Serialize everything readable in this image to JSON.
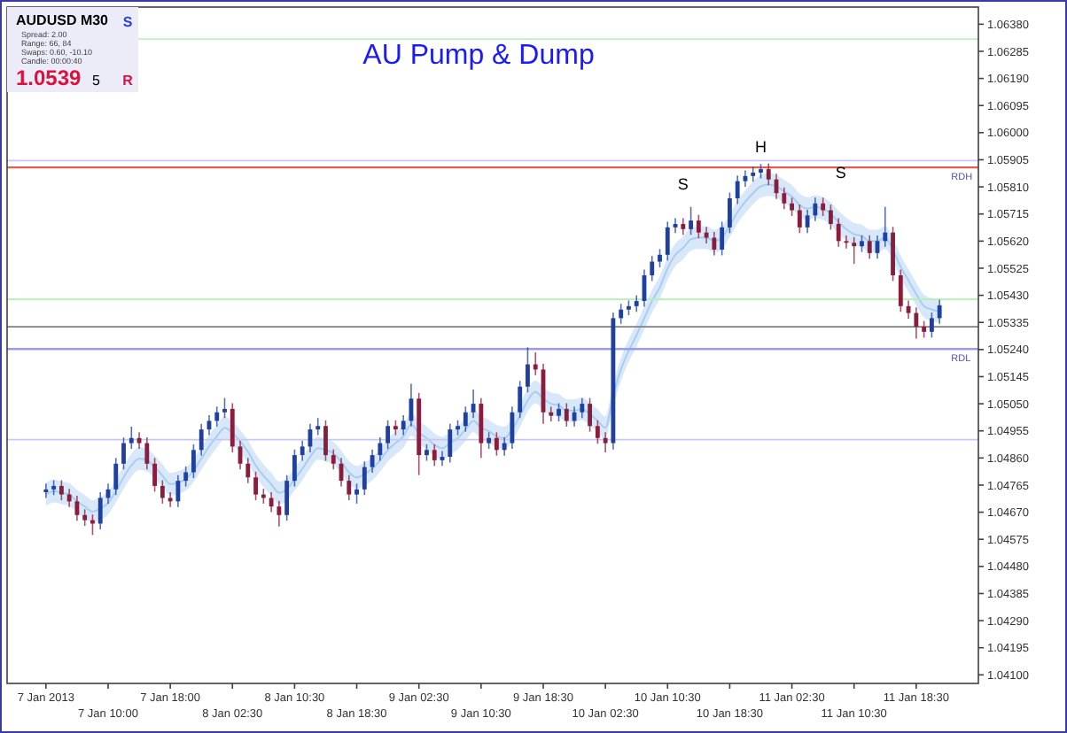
{
  "chart_data": {
    "type": "candlestick",
    "title": "AU Pump & Dump",
    "categories": [
      "7 Jan 2013",
      null,
      null,
      null,
      null,
      null,
      null,
      null,
      "7 Jan 10:00",
      null,
      null,
      null,
      null,
      null,
      null,
      null,
      "7 Jan 18:00",
      null,
      null,
      null,
      null,
      null,
      null,
      null,
      "8 Jan 02:30",
      null,
      null,
      null,
      null,
      null,
      null,
      null,
      "8 Jan 10:30",
      null,
      null,
      null,
      null,
      null,
      null,
      null,
      "8 Jan 18:30",
      null,
      null,
      null,
      null,
      null,
      null,
      null,
      "9 Jan 02:30",
      null,
      null,
      null,
      null,
      null,
      null,
      null,
      "9 Jan 10:30",
      null,
      null,
      null,
      null,
      null,
      null,
      null,
      "9 Jan 18:30",
      null,
      null,
      null,
      null,
      null,
      null,
      null,
      "10 Jan 02:30",
      null,
      null,
      null,
      null,
      null,
      null,
      null,
      "10 Jan 10:30",
      null,
      null,
      null,
      null,
      null,
      null,
      null,
      "10 Jan 18:30",
      null,
      null,
      null,
      null,
      null,
      null,
      null,
      "11 Jan 02:30",
      null,
      null,
      null,
      null,
      null,
      null,
      null,
      "11 Jan 10:30",
      null,
      null,
      null,
      null,
      null,
      null,
      null,
      "11 Jan 18:30",
      null,
      null,
      null
    ],
    "ohlc": [
      [
        1.0474,
        1.0477,
        1.0472,
        1.0475
      ],
      [
        1.0475,
        1.04782,
        1.0473,
        1.04762
      ],
      [
        1.04762,
        1.04782,
        1.04712,
        1.04732
      ],
      [
        1.04732,
        1.04752,
        1.04688,
        1.04708
      ],
      [
        1.04708,
        1.04728,
        1.0464,
        1.0466
      ],
      [
        1.0466,
        1.0468,
        1.04622,
        1.04642
      ],
      [
        1.04642,
        1.04662,
        1.0459,
        1.0463
      ],
      [
        1.0463,
        1.0474,
        1.0461,
        1.0472
      ],
      [
        1.0472,
        1.0477,
        1.047,
        1.0475
      ],
      [
        1.0475,
        1.0486,
        1.0473,
        1.0484
      ],
      [
        1.0484,
        1.04932,
        1.0482,
        1.04912
      ],
      [
        1.04912,
        1.0497,
        1.04892,
        1.0493
      ],
      [
        1.0493,
        1.0495,
        1.04892,
        1.04912
      ],
      [
        1.04912,
        1.04932,
        1.0482,
        1.0484
      ],
      [
        1.0484,
        1.0486,
        1.04742,
        1.04762
      ],
      [
        1.04762,
        1.04782,
        1.047,
        1.0472
      ],
      [
        1.0472,
        1.0474,
        1.04688,
        1.04708
      ],
      [
        1.04708,
        1.048,
        1.04688,
        1.0478
      ],
      [
        1.0478,
        1.0483,
        1.0476,
        1.0481
      ],
      [
        1.0481,
        1.04908,
        1.0479,
        1.04888
      ],
      [
        1.04888,
        1.0498,
        1.04868,
        1.0496
      ],
      [
        1.0496,
        1.0501,
        1.0494,
        1.0499
      ],
      [
        1.0499,
        1.0504,
        1.0497,
        1.0502
      ],
      [
        1.0502,
        1.0507,
        1.05,
        1.05032
      ],
      [
        1.05032,
        1.05052,
        1.0488,
        1.049
      ],
      [
        1.049,
        1.0492,
        1.0482,
        1.0484
      ],
      [
        1.0484,
        1.0486,
        1.04772,
        1.04792
      ],
      [
        1.04792,
        1.04812,
        1.04712,
        1.04732
      ],
      [
        1.04732,
        1.04752,
        1.047,
        1.0472
      ],
      [
        1.0472,
        1.0474,
        1.0467,
        1.0469
      ],
      [
        1.0469,
        1.0471,
        1.0462,
        1.0466
      ],
      [
        1.0466,
        1.048,
        1.0464,
        1.0478
      ],
      [
        1.0478,
        1.0489,
        1.0476,
        1.0487
      ],
      [
        1.0487,
        1.0492,
        1.0485,
        1.049
      ],
      [
        1.049,
        1.0498,
        1.0488,
        1.0496
      ],
      [
        1.0496,
        1.05,
        1.0494,
        1.04972
      ],
      [
        1.04972,
        1.04992,
        1.0485,
        1.0487
      ],
      [
        1.0487,
        1.0489,
        1.0482,
        1.0484
      ],
      [
        1.0484,
        1.0486,
        1.0476,
        1.0478
      ],
      [
        1.0478,
        1.048,
        1.04712,
        1.04732
      ],
      [
        1.04732,
        1.0477,
        1.047,
        1.0475
      ],
      [
        1.0475,
        1.04848,
        1.0473,
        1.04828
      ],
      [
        1.04828,
        1.0489,
        1.04808,
        1.0487
      ],
      [
        1.0487,
        1.04932,
        1.0485,
        1.04912
      ],
      [
        1.04912,
        1.04992,
        1.04892,
        1.04972
      ],
      [
        1.04972,
        1.04992,
        1.0494,
        1.0496
      ],
      [
        1.0496,
        1.0501,
        1.0494,
        1.0499
      ],
      [
        1.0499,
        1.0512,
        1.0497,
        1.05068
      ],
      [
        1.05068,
        1.05088,
        1.048,
        1.0487
      ],
      [
        1.0487,
        1.04908,
        1.0485,
        1.04888
      ],
      [
        1.04888,
        1.04908,
        1.04832,
        1.04852
      ],
      [
        1.04852,
        1.04884,
        1.04832,
        1.04864
      ],
      [
        1.04864,
        1.0498,
        1.04844,
        1.0496
      ],
      [
        1.0496,
        1.04992,
        1.0494,
        1.04972
      ],
      [
        1.04972,
        1.0504,
        1.04952,
        1.0502
      ],
      [
        1.0502,
        1.051,
        1.05,
        1.0505
      ],
      [
        1.0505,
        1.0507,
        1.0486,
        1.04912
      ],
      [
        1.04912,
        1.0495,
        1.04892,
        1.0493
      ],
      [
        1.0493,
        1.0495,
        1.04868,
        1.04888
      ],
      [
        1.04888,
        1.04932,
        1.04868,
        1.04912
      ],
      [
        1.04912,
        1.0504,
        1.04892,
        1.0502
      ],
      [
        1.0502,
        1.0513,
        1.05,
        1.0511
      ],
      [
        1.0511,
        1.05248,
        1.0509,
        1.05188
      ],
      [
        1.05188,
        1.0523,
        1.0515,
        1.0517
      ],
      [
        1.0517,
        1.0519,
        1.0498,
        1.0502
      ],
      [
        1.0502,
        1.0504,
        1.04988,
        1.05008
      ],
      [
        1.05008,
        1.05052,
        1.04988,
        1.05032
      ],
      [
        1.05032,
        1.05052,
        1.0497,
        1.0499
      ],
      [
        1.0499,
        1.0504,
        1.0497,
        1.0502
      ],
      [
        1.0502,
        1.0507,
        1.05,
        1.0505
      ],
      [
        1.0505,
        1.0507,
        1.04952,
        1.04972
      ],
      [
        1.04972,
        1.04992,
        1.0491,
        1.0493
      ],
      [
        1.0493,
        1.0495,
        1.0488,
        1.04912
      ],
      [
        1.04912,
        1.0537,
        1.0489,
        1.0535
      ],
      [
        1.0535,
        1.054,
        1.0533,
        1.0538
      ],
      [
        1.0538,
        1.05412,
        1.0536,
        1.05392
      ],
      [
        1.05392,
        1.0543,
        1.05372,
        1.0541
      ],
      [
        1.0541,
        1.0552,
        1.0539,
        1.055
      ],
      [
        1.055,
        1.05568,
        1.0548,
        1.05548
      ],
      [
        1.05548,
        1.05592,
        1.05528,
        1.05572
      ],
      [
        1.05572,
        1.05688,
        1.05552,
        1.05668
      ],
      [
        1.05668,
        1.057,
        1.05648,
        1.0568
      ],
      [
        1.0568,
        1.057,
        1.05642,
        1.05662
      ],
      [
        1.05662,
        1.0574,
        1.05642,
        1.05692
      ],
      [
        1.05692,
        1.05712,
        1.0563,
        1.0565
      ],
      [
        1.0565,
        1.0567,
        1.05612,
        1.05632
      ],
      [
        1.05632,
        1.05652,
        1.0557,
        1.0559
      ],
      [
        1.0559,
        1.05688,
        1.0557,
        1.05668
      ],
      [
        1.05668,
        1.0579,
        1.05648,
        1.0577
      ],
      [
        1.0577,
        1.0585,
        1.0575,
        1.0583
      ],
      [
        1.0583,
        1.05868,
        1.0581,
        1.05848
      ],
      [
        1.05848,
        1.0588,
        1.05828,
        1.0586
      ],
      [
        1.0586,
        1.0589,
        1.0584,
        1.05872
      ],
      [
        1.05872,
        1.05892,
        1.05816,
        1.05836
      ],
      [
        1.05836,
        1.05856,
        1.05768,
        1.05788
      ],
      [
        1.05788,
        1.05808,
        1.05732,
        1.05752
      ],
      [
        1.05752,
        1.05772,
        1.05708,
        1.05728
      ],
      [
        1.05728,
        1.05748,
        1.05648,
        1.05668
      ],
      [
        1.05668,
        1.0573,
        1.05648,
        1.0571
      ],
      [
        1.0571,
        1.05772,
        1.0569,
        1.05752
      ],
      [
        1.05752,
        1.05772,
        1.05708,
        1.05728
      ],
      [
        1.05728,
        1.05748,
        1.0566,
        1.0568
      ],
      [
        1.0568,
        1.057,
        1.056,
        1.0562
      ],
      [
        1.0562,
        1.0564,
        1.05594,
        1.05614
      ],
      [
        1.05614,
        1.05634,
        1.0554,
        1.05602
      ],
      [
        1.05602,
        1.0564,
        1.05582,
        1.0562
      ],
      [
        1.0562,
        1.0564,
        1.05558,
        1.05578
      ],
      [
        1.05578,
        1.0564,
        1.05558,
        1.0562
      ],
      [
        1.0562,
        1.0574,
        1.056,
        1.0565
      ],
      [
        1.0565,
        1.0567,
        1.0548,
        1.055
      ],
      [
        1.055,
        1.0552,
        1.05372,
        1.05392
      ],
      [
        1.05392,
        1.05412,
        1.05348,
        1.05368
      ],
      [
        1.05368,
        1.05388,
        1.05278,
        1.0532
      ],
      [
        1.0532,
        1.0534,
        1.05282,
        1.05302
      ],
      [
        1.05302,
        1.0537,
        1.05282,
        1.0535
      ],
      [
        1.0535,
        1.05415,
        1.0533,
        1.05395
      ]
    ],
    "colors": [
      "#1e40a0",
      "#1e40a0",
      "#8a1c3c",
      "#8a1c3c",
      "#8a1c3c",
      "#8a1c3c",
      "#8a1c3c",
      "#1e40a0",
      "#1e40a0",
      "#1e40a0",
      "#1e40a0",
      "#1e40a0",
      "#8a1c3c",
      "#8a1c3c",
      "#8a1c3c",
      "#8a1c3c",
      "#8a1c3c",
      "#1e40a0",
      "#1e40a0",
      "#1e40a0",
      "#1e40a0",
      "#1e40a0",
      "#1e40a0",
      "#1e40a0",
      "#8a1c3c",
      "#8a1c3c",
      "#8a1c3c",
      "#8a1c3c",
      "#8a1c3c",
      "#8a1c3c",
      "#8a1c3c",
      "#1e40a0",
      "#1e40a0",
      "#1e40a0",
      "#1e40a0",
      "#1e40a0",
      "#8a1c3c",
      "#8a1c3c",
      "#8a1c3c",
      "#8a1c3c",
      "#1e40a0",
      "#1e40a0",
      "#1e40a0",
      "#1e40a0",
      "#1e40a0",
      "#8a1c3c",
      "#1e40a0",
      "#1e40a0",
      "#8a1c3c",
      "#1e40a0",
      "#8a1c3c",
      "#1e40a0",
      "#1e40a0",
      "#1e40a0",
      "#1e40a0",
      "#1e40a0",
      "#8a1c3c",
      "#1e40a0",
      "#8a1c3c",
      "#1e40a0",
      "#1e40a0",
      "#1e40a0",
      "#1e40a0",
      "#8a1c3c",
      "#8a1c3c",
      "#8a1c3c",
      "#1e40a0",
      "#8a1c3c",
      "#1e40a0",
      "#1e40a0",
      "#8a1c3c",
      "#8a1c3c",
      "#8a1c3c",
      "#1e40a0",
      "#1e40a0",
      "#1e40a0",
      "#1e40a0",
      "#1e40a0",
      "#1e40a0",
      "#1e40a0",
      "#1e40a0",
      "#1e40a0",
      "#8a1c3c",
      "#1e40a0",
      "#8a1c3c",
      "#8a1c3c",
      "#8a1c3c",
      "#1e40a0",
      "#1e40a0",
      "#1e40a0",
      "#1e40a0",
      "#1e40a0",
      "#1e40a0",
      "#8a1c3c",
      "#8a1c3c",
      "#8a1c3c",
      "#8a1c3c",
      "#8a1c3c",
      "#1e40a0",
      "#1e40a0",
      "#8a1c3c",
      "#8a1c3c",
      "#8a1c3c",
      "#8a1c3c",
      "#8a1c3c",
      "#1e40a0",
      "#8a1c3c",
      "#1e40a0",
      "#1e40a0",
      "#8a1c3c",
      "#8a1c3c",
      "#8a1c3c",
      "#8a1c3c",
      "#8a1c3c",
      "#1e40a0",
      "#1e40a0"
    ],
    "series": [
      {
        "type": "line",
        "color": "#a8cdf2",
        "values": [
          1.04732,
          1.04744,
          1.04738,
          1.04732,
          1.04708,
          1.0469,
          1.04672,
          1.04684,
          1.04702,
          1.04744,
          1.04792,
          1.04834,
          1.04858,
          1.04852,
          1.04828,
          1.04798,
          1.04768,
          1.04774,
          1.04786,
          1.04816,
          1.04858,
          1.049,
          1.04936,
          1.04966,
          1.04948,
          1.04918,
          1.04882,
          1.04834,
          1.04798,
          1.04768,
          1.04738,
          1.0475,
          1.04786,
          1.04822,
          1.04864,
          1.04894,
          1.04888,
          1.04876,
          1.04846,
          1.0481,
          1.04792,
          1.04804,
          1.04822,
          1.04852,
          1.04888,
          1.04912,
          1.04936,
          1.04978,
          1.04948,
          1.0493,
          1.04906,
          1.04894,
          1.04912,
          1.0493,
          1.0496,
          1.0499,
          1.04966,
          1.04954,
          1.04936,
          1.0493,
          1.0496,
          1.05008,
          1.05062,
          1.05092,
          1.05068,
          1.0505,
          1.05044,
          1.05026,
          1.05026,
          1.05032,
          1.05014,
          1.0499,
          1.04966,
          1.0508,
          1.0517,
          1.05236,
          1.0529,
          1.0535,
          1.0541,
          1.05458,
          1.05524,
          1.05572,
          1.05596,
          1.05626,
          1.05632,
          1.05632,
          1.0562,
          1.05632,
          1.05674,
          1.05722,
          1.05758,
          1.05788,
          1.05812,
          1.05818,
          1.05812,
          1.05794,
          1.05776,
          1.05746,
          1.05734,
          1.0574,
          1.05734,
          1.05716,
          1.05686,
          1.05662,
          1.05644,
          1.05638,
          1.0562,
          1.0562,
          1.05632,
          1.0559,
          1.0553,
          1.05482,
          1.05434,
          1.05392,
          1.0538,
          1.05374
        ],
        "lower": [
          1.04692,
          1.04704,
          1.04698,
          1.04692,
          1.04668,
          1.0465,
          1.04632,
          1.04644,
          1.04662,
          1.04704,
          1.04752,
          1.04794,
          1.04818,
          1.04812,
          1.04788,
          1.04758,
          1.04728,
          1.04734,
          1.04746,
          1.04776,
          1.04818,
          1.0486,
          1.04896,
          1.04926,
          1.04908,
          1.04878,
          1.04842,
          1.04794,
          1.04758,
          1.04728,
          1.04698,
          1.0471,
          1.04746,
          1.04782,
          1.04824,
          1.04854,
          1.04848,
          1.04836,
          1.04806,
          1.0477,
          1.04752,
          1.04764,
          1.04782,
          1.04812,
          1.04848,
          1.04872,
          1.04896,
          1.04938,
          1.04908,
          1.0489,
          1.04866,
          1.04854,
          1.04872,
          1.0489,
          1.0492,
          1.0495,
          1.04926,
          1.04914,
          1.04896,
          1.0489,
          1.0492,
          1.04968,
          1.05022,
          1.05052,
          1.05028,
          1.0501,
          1.05004,
          1.04986,
          1.04986,
          1.04992,
          1.04974,
          1.0495,
          1.04926,
          1.0504,
          1.0513,
          1.05196,
          1.0525,
          1.0531,
          1.0537,
          1.05418,
          1.05484,
          1.05532,
          1.05556,
          1.05586,
          1.05592,
          1.05592,
          1.0558,
          1.05592,
          1.05634,
          1.05682,
          1.05718,
          1.05748,
          1.05772,
          1.05778,
          1.05772,
          1.05754,
          1.05736,
          1.05706,
          1.05694,
          1.057,
          1.05694,
          1.05676,
          1.05646,
          1.05622,
          1.05604,
          1.05598,
          1.0558,
          1.0558,
          1.05592,
          1.0555,
          1.0549,
          1.05442,
          1.05394,
          1.05352,
          1.0534,
          1.05334
        ],
        "upper": [
          1.04772,
          1.04784,
          1.04778,
          1.04772,
          1.04748,
          1.0473,
          1.04712,
          1.04724,
          1.04742,
          1.04784,
          1.04832,
          1.04874,
          1.04898,
          1.04892,
          1.04868,
          1.04838,
          1.04808,
          1.04814,
          1.04826,
          1.04856,
          1.04898,
          1.0494,
          1.04976,
          1.05006,
          1.04988,
          1.04958,
          1.04922,
          1.04874,
          1.04838,
          1.04808,
          1.04778,
          1.0479,
          1.04826,
          1.04862,
          1.04904,
          1.04934,
          1.04928,
          1.04916,
          1.04886,
          1.0485,
          1.04832,
          1.04844,
          1.04862,
          1.04892,
          1.04928,
          1.04952,
          1.04976,
          1.05018,
          1.04988,
          1.0497,
          1.04946,
          1.04934,
          1.04952,
          1.0497,
          1.05,
          1.0503,
          1.05006,
          1.04994,
          1.04976,
          1.0497,
          1.05,
          1.05048,
          1.05102,
          1.05132,
          1.05108,
          1.0509,
          1.05084,
          1.05066,
          1.05066,
          1.05072,
          1.05054,
          1.0503,
          1.05006,
          1.0512,
          1.0521,
          1.05276,
          1.0533,
          1.0539,
          1.0545,
          1.05498,
          1.05564,
          1.05612,
          1.05636,
          1.05666,
          1.05672,
          1.05672,
          1.0566,
          1.05672,
          1.05714,
          1.05762,
          1.05798,
          1.05828,
          1.05852,
          1.05858,
          1.05852,
          1.05834,
          1.05816,
          1.05786,
          1.05774,
          1.0578,
          1.05774,
          1.05756,
          1.05726,
          1.05702,
          1.05684,
          1.05678,
          1.0566,
          1.0566,
          1.05672,
          1.0563,
          1.0557,
          1.05522,
          1.05474,
          1.05432,
          1.0542,
          1.05414
        ]
      }
    ],
    "ylim": [
      1.0407,
      1.0644
    ],
    "yticks": [
      {
        "value": 1.041,
        "label": "1.04100"
      },
      {
        "value": 1.04195,
        "label": "1.04195"
      },
      {
        "value": 1.0429,
        "label": "1.04290"
      },
      {
        "value": 1.04385,
        "label": "1.04385"
      },
      {
        "value": 1.0448,
        "label": "1.04480"
      },
      {
        "value": 1.04575,
        "label": "1.04575"
      },
      {
        "value": 1.0467,
        "label": "1.04670"
      },
      {
        "value": 1.04765,
        "label": "1.04765"
      },
      {
        "value": 1.0486,
        "label": "1.04860"
      },
      {
        "value": 1.04955,
        "label": "1.04955"
      },
      {
        "value": 1.0505,
        "label": "1.05050"
      },
      {
        "value": 1.05145,
        "label": "1.05145"
      },
      {
        "value": 1.0524,
        "label": "1.05240"
      },
      {
        "value": 1.05335,
        "label": "1.05335"
      },
      {
        "value": 1.0543,
        "label": "1.05430"
      },
      {
        "value": 1.05525,
        "label": "1.05525"
      },
      {
        "value": 1.0562,
        "label": "1.05620"
      },
      {
        "value": 1.05715,
        "label": "1.05715"
      },
      {
        "value": 1.0581,
        "label": "1.05810"
      },
      {
        "value": 1.05905,
        "label": "1.05905"
      },
      {
        "value": 1.06,
        "label": "1.06000"
      },
      {
        "value": 1.06095,
        "label": "1.06095"
      },
      {
        "value": 1.0619,
        "label": "1.06190"
      },
      {
        "value": 1.06285,
        "label": "1.06285"
      },
      {
        "value": 1.0638,
        "label": "1.06380"
      }
    ],
    "ref_lines": [
      {
        "axis": "y",
        "value": 1.0532,
        "color": "#808080"
      },
      {
        "axis": "y",
        "value": 1.05878,
        "label": "RDH",
        "color": "#e06050"
      },
      {
        "axis": "y",
        "value": 1.05902,
        "color": "#c8c8f4"
      },
      {
        "axis": "y",
        "value": 1.05242,
        "label": "RDL",
        "color": "#9a9af0"
      },
      {
        "axis": "y",
        "value": 1.05416,
        "color": "#b0f0b0"
      },
      {
        "axis": "y",
        "value": 1.04924,
        "color": "#c8c8f4"
      },
      {
        "axis": "y",
        "value": 1.06328,
        "color": "#c0f0c0"
      }
    ],
    "annotations": [
      "AUDUSD  M30",
      "Spread: 2.00",
      "Range: 66, 84",
      "Swaps: 0.60, -10.10",
      "Candle: 00:00:40",
      "1.0539",
      "5",
      "S",
      "R",
      "S",
      "H",
      "S"
    ]
  }
}
